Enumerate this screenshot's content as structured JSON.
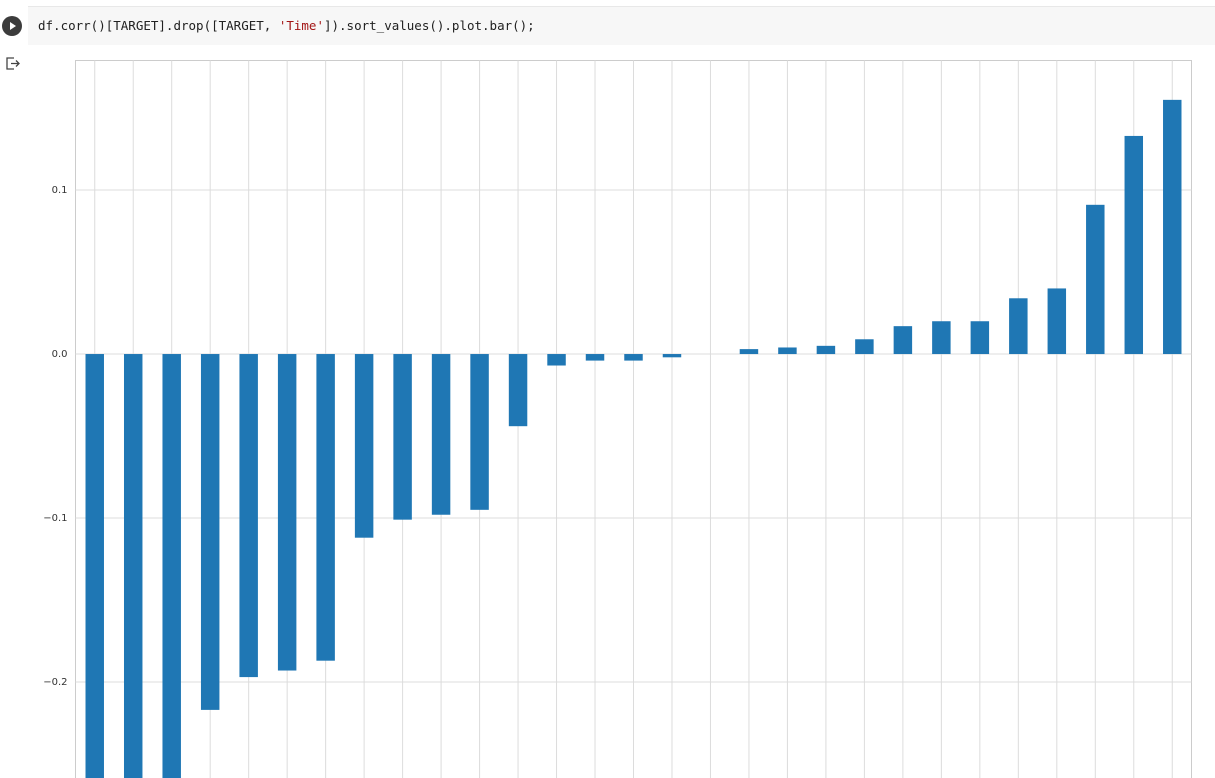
{
  "code": {
    "before": "df.corr()[TARGET].drop([TARGET, ",
    "string": "'Time'",
    "after": "]).sort_values().plot.bar();"
  },
  "chart_data": {
    "type": "bar",
    "color": "#1f77b4",
    "grid": true,
    "values": [
      -0.28,
      -0.275,
      -0.27,
      -0.217,
      -0.197,
      -0.193,
      -0.187,
      -0.112,
      -0.101,
      -0.098,
      -0.095,
      -0.044,
      -0.007,
      -0.004,
      -0.004,
      -0.002,
      0,
      0.003,
      0.004,
      0.005,
      0.009,
      0.017,
      0.02,
      0.02,
      0.034,
      0.04,
      0.091,
      0.133,
      0.155
    ],
    "ylim": [
      -0.27,
      0.179
    ],
    "yticks": [
      {
        "value": -0.2,
        "label": "−0.2"
      },
      {
        "value": -0.1,
        "label": "−0.1"
      },
      {
        "value": 0,
        "label": "0.0"
      },
      0.1
    ]
  }
}
